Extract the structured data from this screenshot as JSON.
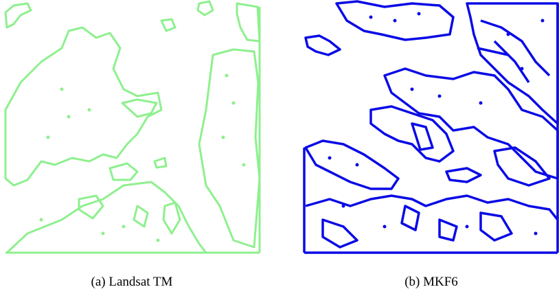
{
  "figure": {
    "panels": [
      {
        "caption": "(a) Landsat TM"
      },
      {
        "caption": "(b) MKF6"
      }
    ]
  }
}
